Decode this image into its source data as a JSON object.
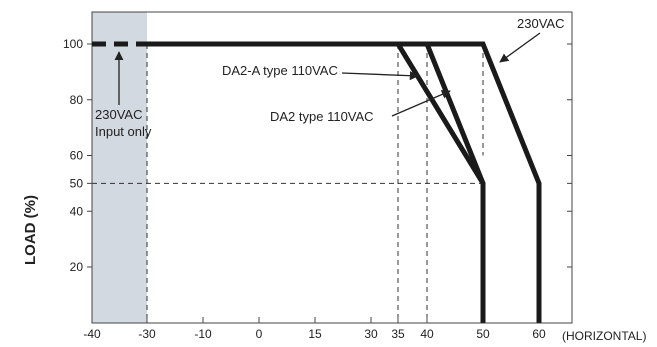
{
  "chart_data": {
    "type": "line",
    "title": "",
    "xlabel": "(HORIZONTAL)",
    "ylabel": "LOAD (%)",
    "xlim": [
      -40,
      60
    ],
    "ylim": [
      0,
      110
    ],
    "x_ticks": [
      "-40",
      "-30",
      "-10",
      "0",
      "15",
      "30",
      "35",
      "40",
      "50",
      "60"
    ],
    "y_ticks": [
      "20",
      "40",
      "50",
      "60",
      "80",
      "100"
    ],
    "grid": false,
    "shaded_region": {
      "x": [
        -40,
        -30
      ],
      "color": "#d3d9e0"
    },
    "dashed_references": [
      {
        "orientation": "vertical",
        "x": -30,
        "y": [
          0,
          100
        ]
      },
      {
        "orientation": "vertical",
        "x": 35,
        "y": [
          0,
          100
        ]
      },
      {
        "orientation": "vertical",
        "x": 40,
        "y": [
          0,
          100
        ]
      },
      {
        "orientation": "vertical",
        "x": 50,
        "y": [
          60,
          100
        ]
      },
      {
        "orientation": "horizontal",
        "y": 50,
        "x": [
          -40,
          50
        ]
      }
    ],
    "series": [
      {
        "name": "230VAC",
        "x": [
          -40,
          50,
          60,
          60
        ],
        "y": [
          100,
          100,
          50,
          0
        ]
      },
      {
        "name": "DA2-A type 110VAC",
        "x": [
          -40,
          40,
          50,
          50
        ],
        "y": [
          100,
          100,
          50,
          0
        ]
      },
      {
        "name": "DA2 type 110VAC",
        "x": [
          -40,
          35,
          50,
          50
        ],
        "y": [
          100,
          100,
          50,
          0
        ]
      }
    ],
    "dashed_segment": {
      "x": [
        -40,
        -30
      ],
      "y": 100
    },
    "annotations": [
      {
        "text": "230VAC",
        "target": "230VAC"
      },
      {
        "text": "DA2-A type 110VAC",
        "target": "DA2-A type 110VAC"
      },
      {
        "text": "DA2 type 110VAC",
        "target": "DA2 type 110VAC"
      },
      {
        "text": "230VAC",
        "target": "input-only"
      },
      {
        "text": "Input only",
        "target": "input-only"
      }
    ],
    "colors": {
      "line": "#1a1a1a",
      "shade": "#d3d9e0",
      "frame": "#444444"
    }
  }
}
